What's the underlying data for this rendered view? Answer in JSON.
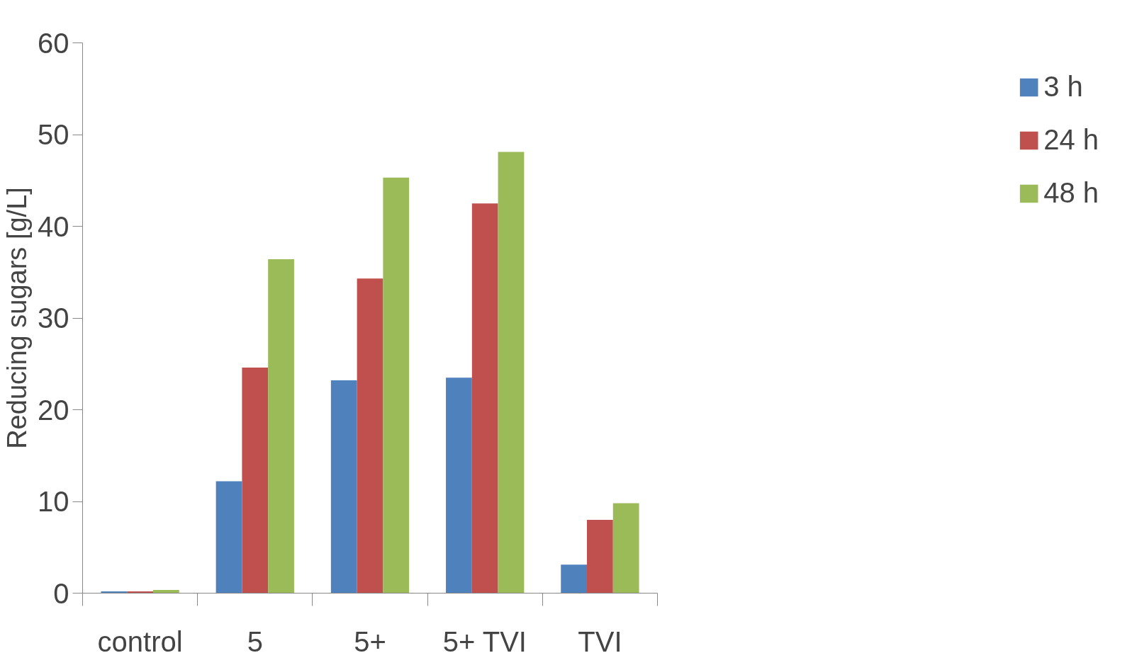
{
  "chart_data": {
    "type": "bar",
    "ylabel": "Reducing sugars [g/L]",
    "categories": [
      "control",
      "5",
      "5+",
      "5+ TVI",
      "TVI"
    ],
    "series": [
      {
        "name": "3 h",
        "color": "#4f81bd",
        "values": [
          0.2,
          12.2,
          23.2,
          23.5,
          3.1
        ]
      },
      {
        "name": "24 h",
        "color": "#c0504d",
        "values": [
          0.2,
          24.6,
          34.3,
          42.5,
          8.0
        ]
      },
      {
        "name": "48 h",
        "color": "#9bbb59",
        "values": [
          0.35,
          36.4,
          45.3,
          48.1,
          9.8
        ]
      }
    ],
    "ylim": [
      0,
      60
    ],
    "yticks": [
      0,
      10,
      20,
      30,
      40,
      50,
      60
    ],
    "grid": false,
    "legend": "right"
  }
}
